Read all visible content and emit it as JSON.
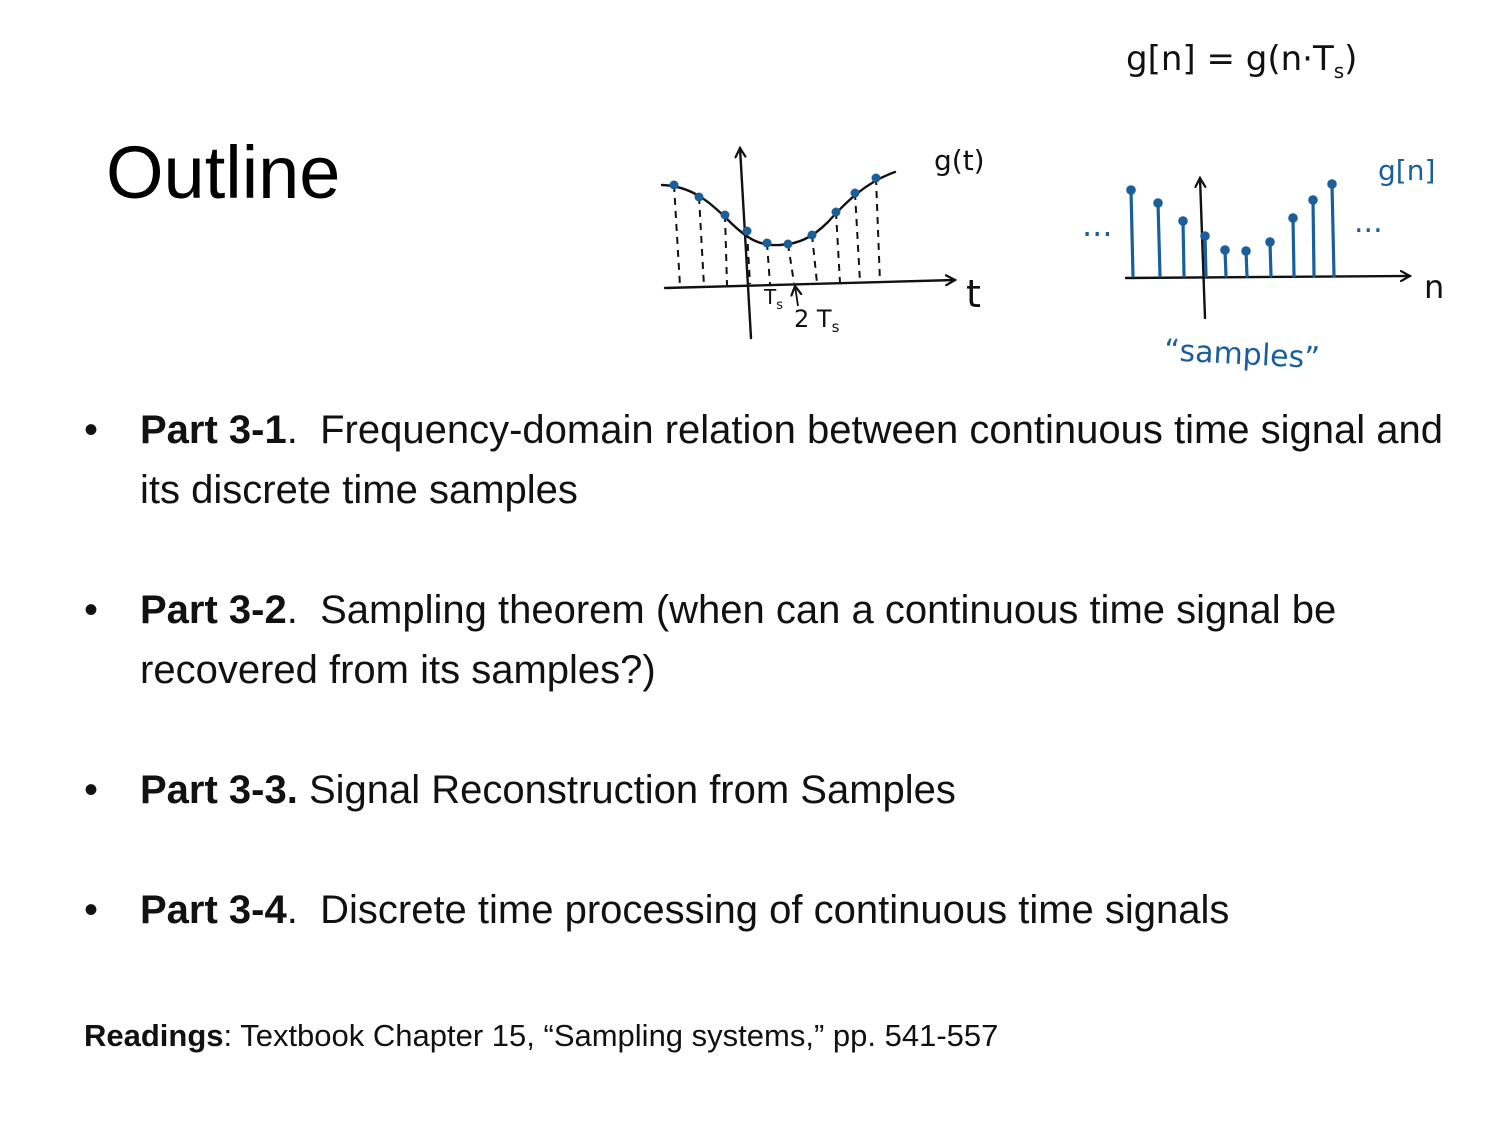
{
  "slide": {
    "title": "Outline"
  },
  "figure": {
    "equation": "g[n] = g(n·T",
    "equation_sub": "s",
    "equation_close": ")",
    "ct_label": "g(t)",
    "ct_axis_label": "t",
    "ts_label": "T",
    "ts_sub": "s",
    "two_ts_label": "2 T",
    "two_ts_sub": "s",
    "dt_label": "g[n]",
    "dt_axis_label": "n",
    "dots": "...",
    "samples_caption": "“samples”",
    "ink_color": "#111111",
    "sample_color": "#1a5e9a"
  },
  "bullets": [
    {
      "label": "Part 3-1",
      "sep": ".",
      "text": "  Frequency-domain relation between continuous time signal and its discrete time samples"
    },
    {
      "label": "Part 3-2",
      "sep": ".",
      "text": "  Sampling theorem (when can a continuous time signal be recovered from its samples?)"
    },
    {
      "label": "Part 3-3.",
      "sep": "",
      "text": " Signal Reconstruction from Samples"
    },
    {
      "label": "Part 3-4",
      "sep": ".",
      "text": "  Discrete time processing of continuous time signals"
    }
  ],
  "bullet_symbol": "•",
  "readings": {
    "label": "Readings",
    "text": ": Textbook Chapter 15, “Sampling systems,” pp. 541-557"
  }
}
